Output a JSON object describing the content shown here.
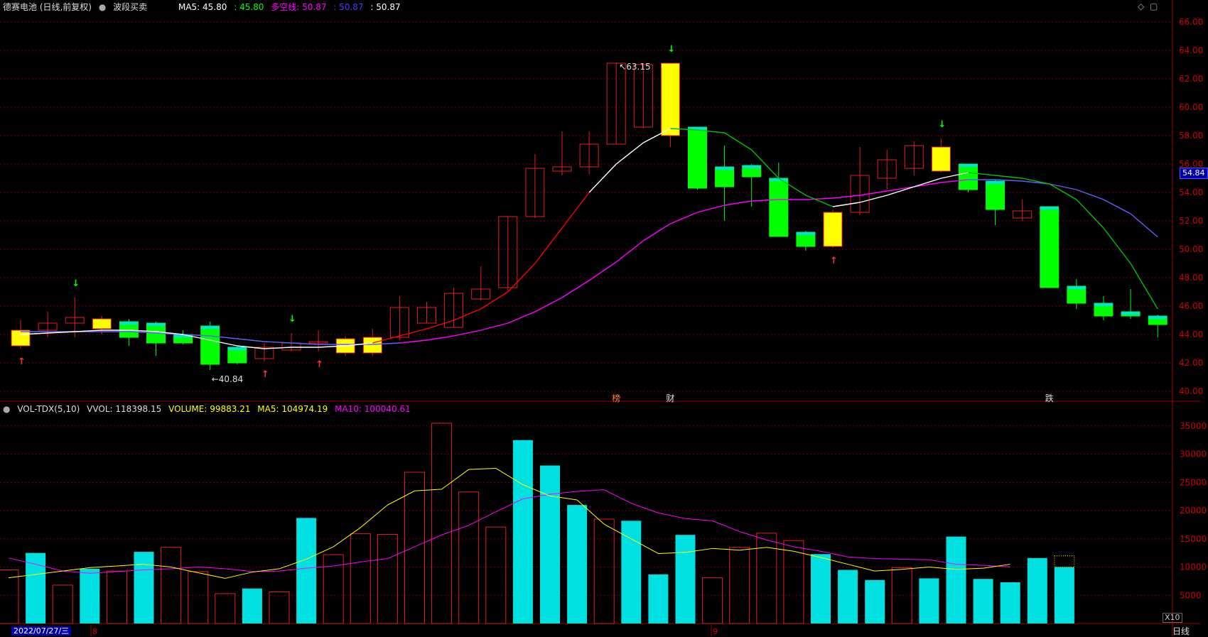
{
  "header": {
    "stock_title": "德赛电池 (日线,前复权)",
    "indicator_name": "波段买卖",
    "ma5_label": "MA5: 45.80",
    "ma5_val2": ": 45.80",
    "bull_bear_label": "多空线: 50.87",
    "bull_bear_val2": ": 50.87",
    "val3": ": 50.87"
  },
  "volume_header": {
    "name": "VOL-TDX(5,10)",
    "vvol": "VVOL: 118398.15",
    "volume": "VOLUME: 99883.21",
    "ma5": "MA5: 104974.19",
    "ma10": "MA10: 100040.61"
  },
  "footer": {
    "date_label": "2022/07/27/三",
    "month_8": "8",
    "month_9": "9",
    "period": "日线",
    "zoom": "X10"
  },
  "price_tag": "54.84",
  "annotations": {
    "high": "63.15",
    "low": "40.84",
    "event_bang": "榜",
    "event_cai": "财",
    "event_die": "跌"
  },
  "colors": {
    "up": "#e02020",
    "down": "#00e0e0",
    "buy_box": "#ffff00",
    "sell_green": "#00ff00",
    "ma5_line": "#ffffff",
    "ma10_line": "#ff00ff",
    "red_trend": "#ff0000",
    "blue_trend": "#6060ff",
    "green_trend": "#00c000",
    "vol_ma5": "#ffff00",
    "vol_ma10": "#ff00ff"
  },
  "chart_data": [
    {
      "type": "candlestick",
      "title": "德赛电池 (日线,前复权)",
      "y_ticks": [
        "66.00",
        "64.00",
        "62.00",
        "60.00",
        "58.00",
        "56.00",
        "54.00",
        "52.00",
        "50.00",
        "48.00",
        "46.00",
        "44.00",
        "42.00",
        "40.00"
      ],
      "ylim": [
        39.3,
        66.8
      ],
      "candles": [
        {
          "o": 43.2,
          "h": 45.0,
          "l": 43.0,
          "c": 44.3,
          "t": "yellow"
        },
        {
          "o": 44.3,
          "h": 45.6,
          "l": 43.8,
          "c": 44.8,
          "t": "up"
        },
        {
          "o": 44.8,
          "h": 46.6,
          "l": 43.8,
          "c": 45.2,
          "t": "up"
        },
        {
          "o": 45.1,
          "h": 45.3,
          "l": 44.0,
          "c": 44.4,
          "t": "yellow"
        },
        {
          "o": 44.9,
          "h": 45.1,
          "l": 43.2,
          "c": 43.8,
          "t": "green"
        },
        {
          "o": 44.8,
          "h": 44.9,
          "l": 42.5,
          "c": 43.4,
          "t": "green"
        },
        {
          "o": 44.0,
          "h": 44.3,
          "l": 43.3,
          "c": 43.4,
          "t": "green"
        },
        {
          "o": 44.6,
          "h": 44.9,
          "l": 41.5,
          "c": 41.9,
          "t": "green"
        },
        {
          "o": 43.1,
          "h": 43.2,
          "l": 41.9,
          "c": 42.0,
          "t": "green"
        },
        {
          "o": 42.3,
          "h": 43.4,
          "l": 42.1,
          "c": 43.1,
          "t": "up"
        },
        {
          "o": 42.9,
          "h": 44.1,
          "l": 42.8,
          "c": 43.4,
          "t": "up"
        },
        {
          "o": 43.5,
          "h": 44.3,
          "l": 42.8,
          "c": 43.5,
          "t": "up"
        },
        {
          "o": 43.7,
          "h": 43.9,
          "l": 42.5,
          "c": 42.7,
          "t": "yellow"
        },
        {
          "o": 42.7,
          "h": 44.4,
          "l": 42.5,
          "c": 43.8,
          "t": "yellow"
        },
        {
          "o": 43.8,
          "h": 46.7,
          "l": 43.6,
          "c": 45.9,
          "t": "up"
        },
        {
          "o": 44.8,
          "h": 46.3,
          "l": 44.8,
          "c": 45.9,
          "t": "up"
        },
        {
          "o": 44.5,
          "h": 47.3,
          "l": 44.5,
          "c": 46.9,
          "t": "up"
        },
        {
          "o": 46.5,
          "h": 48.8,
          "l": 46.4,
          "c": 47.2,
          "t": "up"
        },
        {
          "o": 47.3,
          "h": 52.3,
          "l": 47.0,
          "c": 52.3,
          "t": "up"
        },
        {
          "o": 52.3,
          "h": 56.7,
          "l": 52.2,
          "c": 55.7,
          "t": "up"
        },
        {
          "o": 55.5,
          "h": 58.3,
          "l": 55.2,
          "c": 55.8,
          "t": "up"
        },
        {
          "o": 55.8,
          "h": 58.3,
          "l": 55.3,
          "c": 57.4,
          "t": "up"
        },
        {
          "o": 57.4,
          "h": 63.15,
          "l": 57.4,
          "c": 63.1,
          "t": "up"
        },
        {
          "o": 58.6,
          "h": 63.1,
          "l": 58.5,
          "c": 63.0,
          "t": "up"
        },
        {
          "o": 58.0,
          "h": 63.1,
          "l": 57.2,
          "c": 63.1,
          "t": "yellow"
        },
        {
          "o": 58.6,
          "h": 58.6,
          "l": 54.2,
          "c": 54.3,
          "t": "green"
        },
        {
          "o": 55.8,
          "h": 57.3,
          "l": 52.0,
          "c": 54.4,
          "t": "green"
        },
        {
          "o": 55.9,
          "h": 56.0,
          "l": 53.0,
          "c": 55.1,
          "t": "green"
        },
        {
          "o": 55.0,
          "h": 56.1,
          "l": 50.9,
          "c": 50.9,
          "t": "green"
        },
        {
          "o": 51.2,
          "h": 51.3,
          "l": 49.9,
          "c": 50.2,
          "t": "green"
        },
        {
          "o": 50.2,
          "h": 52.8,
          "l": 50.1,
          "c": 52.6,
          "t": "yellow"
        },
        {
          "o": 52.6,
          "h": 57.2,
          "l": 52.4,
          "c": 55.2,
          "t": "up"
        },
        {
          "o": 55.0,
          "h": 57.0,
          "l": 54.2,
          "c": 56.3,
          "t": "up"
        },
        {
          "o": 55.7,
          "h": 57.6,
          "l": 55.2,
          "c": 57.3,
          "t": "up"
        },
        {
          "o": 57.2,
          "h": 57.8,
          "l": 55.4,
          "c": 55.5,
          "t": "yellow"
        },
        {
          "o": 56.0,
          "h": 56.0,
          "l": 54.0,
          "c": 54.2,
          "t": "green"
        },
        {
          "o": 54.8,
          "h": 54.9,
          "l": 51.7,
          "c": 52.8,
          "t": "green"
        },
        {
          "o": 52.7,
          "h": 53.5,
          "l": 52.0,
          "c": 52.2,
          "t": "up"
        },
        {
          "o": 53.0,
          "h": 53.0,
          "l": 47.3,
          "c": 47.3,
          "t": "green"
        },
        {
          "o": 47.4,
          "h": 47.9,
          "l": 45.8,
          "c": 46.2,
          "t": "green"
        },
        {
          "o": 46.2,
          "h": 46.7,
          "l": 45.0,
          "c": 45.3,
          "t": "green"
        },
        {
          "o": 45.6,
          "h": 47.2,
          "l": 45.1,
          "c": 45.3,
          "t": "green"
        },
        {
          "o": 45.3,
          "h": 45.4,
          "l": 43.8,
          "c": 44.7,
          "t": "green"
        }
      ],
      "series": [
        {
          "name": "MA5",
          "values": [
            44.0,
            44.1,
            44.2,
            44.3,
            44.3,
            44.2,
            44.0,
            43.6,
            43.2,
            43.0,
            43.1,
            43.1,
            43.2,
            43.4,
            43.9,
            44.4,
            45.0,
            45.8,
            47.0,
            49.0,
            51.5,
            54.0,
            56.0,
            57.5,
            58.5,
            58.4,
            58.2,
            57.0,
            55.0,
            53.8,
            53.0,
            53.3,
            53.8,
            54.4,
            55.0,
            55.4,
            55.2,
            55.0,
            54.6,
            53.5,
            51.5,
            49.0,
            45.8
          ]
        },
        {
          "name": "MA10",
          "values": [
            44.2,
            44.2,
            44.2,
            44.2,
            44.2,
            44.1,
            44.0,
            43.9,
            43.7,
            43.5,
            43.4,
            43.3,
            43.3,
            43.3,
            43.4,
            43.6,
            43.9,
            44.3,
            44.8,
            45.6,
            46.6,
            47.8,
            49.1,
            50.6,
            51.8,
            52.6,
            53.1,
            53.4,
            53.5,
            53.5,
            53.6,
            53.8,
            54.1,
            54.4,
            54.7,
            54.9,
            54.9,
            54.8,
            54.6,
            54.2,
            53.5,
            52.5,
            50.87
          ]
        }
      ],
      "buy_arrows": [
        0,
        9,
        11,
        30
      ],
      "sell_arrows": [
        2,
        10,
        24,
        34
      ]
    },
    {
      "type": "bar",
      "name": "VOL-TDX(5,10)",
      "y_ticks": [
        "35000",
        "30000",
        "25000",
        "20000",
        "15000",
        "10000",
        "5000"
      ],
      "ylim": [
        0,
        37500
      ],
      "values": [
        9500,
        12500,
        6800,
        9700,
        9300,
        12700,
        13500,
        9200,
        5300,
        6200,
        5600,
        18700,
        12200,
        15900,
        15800,
        26800,
        35500,
        23300,
        17100,
        32500,
        28000,
        21000,
        18500,
        18200,
        8700,
        15700,
        8100,
        13500,
        16000,
        14700,
        12300,
        9500,
        7700,
        9900,
        8000,
        15400,
        7900,
        7300,
        11600,
        9988
      ],
      "up": [
        true,
        false,
        true,
        false,
        true,
        false,
        true,
        true,
        true,
        false,
        true,
        false,
        true,
        true,
        true,
        true,
        true,
        true,
        true,
        false,
        false,
        false,
        true,
        false,
        false,
        false,
        true,
        true,
        true,
        true,
        false,
        false,
        false,
        true,
        false,
        false,
        false,
        false,
        false
      ],
      "series": [
        {
          "name": "MA5",
          "values": [
            8100,
            8700,
            9300,
            9900,
            10200,
            10500,
            10000,
            9000,
            8000,
            9100,
            9700,
            11400,
            13600,
            17000,
            21000,
            23500,
            23800,
            27300,
            27500,
            24600,
            22600,
            21900,
            17600,
            15000,
            12400,
            12600,
            13300,
            13000,
            13500,
            12800,
            11700,
            10500,
            9300,
            9600,
            10000,
            9600,
            9800,
            10500
          ]
        },
        {
          "name": "MA10",
          "values": [
            11600,
            10500,
            9300,
            8900,
            9200,
            9500,
            9700,
            10000,
            9700,
            9200,
            9300,
            9800,
            10200,
            10900,
            11500,
            13600,
            15700,
            17400,
            19800,
            22100,
            22900,
            23400,
            23700,
            21300,
            19600,
            18600,
            18200,
            16300,
            14800,
            13600,
            12800,
            11800,
            11500,
            11400,
            11300,
            10500,
            10300,
            10040
          ]
        }
      ]
    }
  ]
}
